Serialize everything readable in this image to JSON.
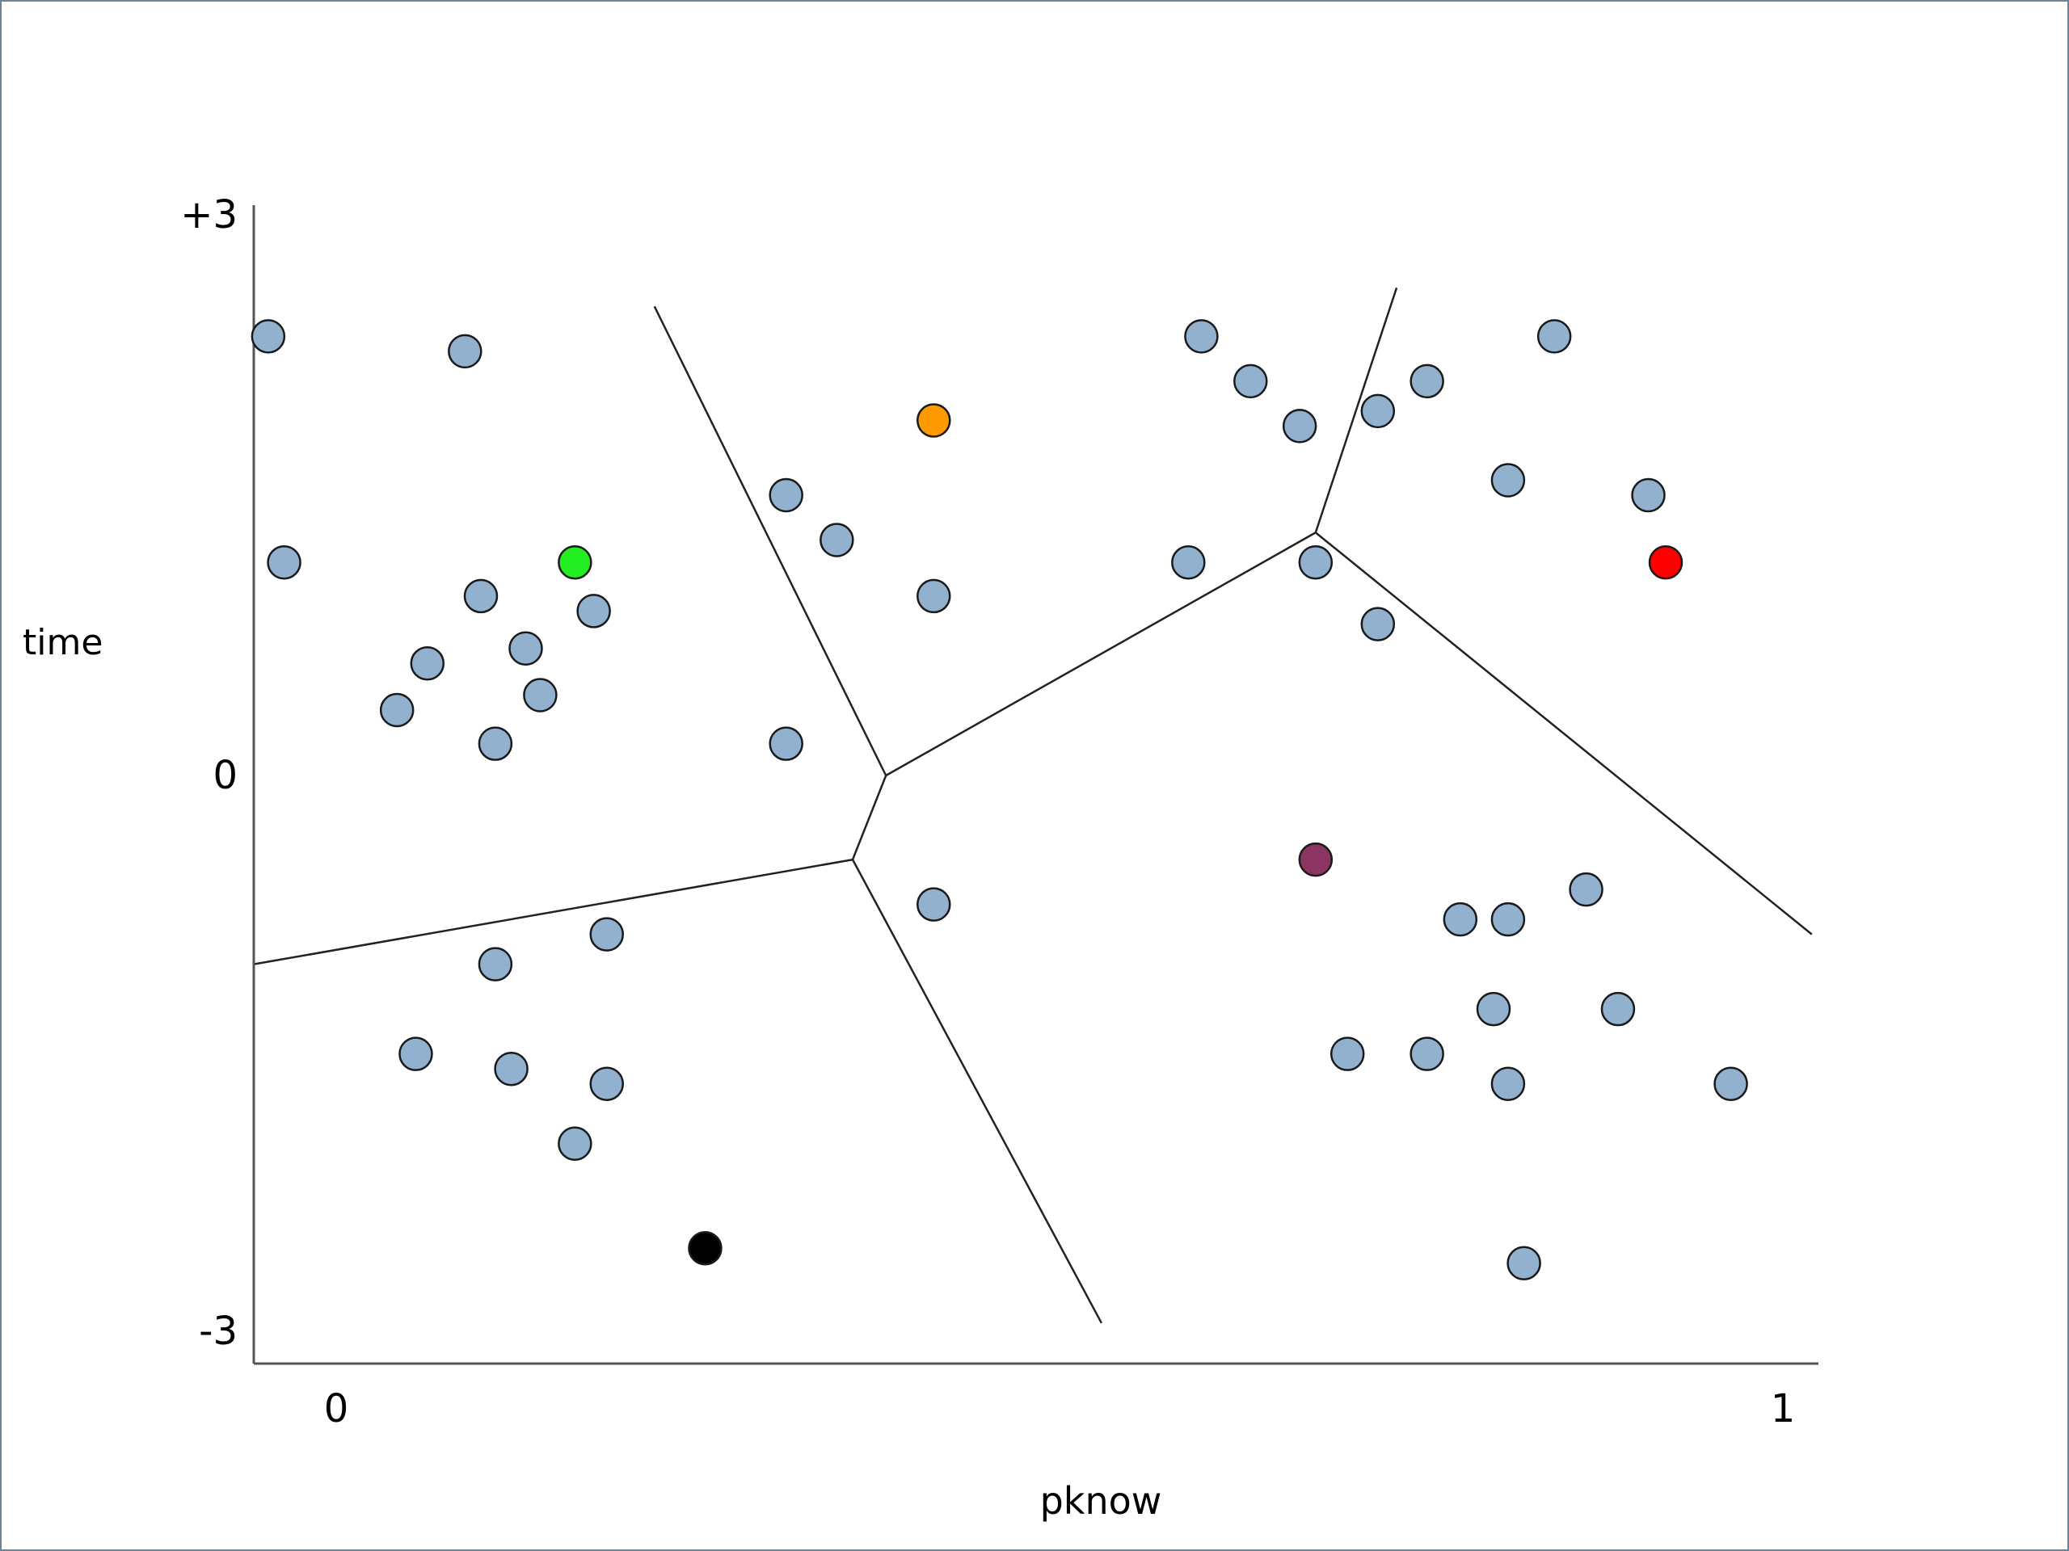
{
  "chart_data": {
    "type": "scatter",
    "title": "",
    "xlabel": "pknow",
    "ylabel": "time",
    "xlim": [
      0,
      1
    ],
    "ylim": [
      -3,
      3
    ],
    "x_tick_labels": [
      {
        "value": 0,
        "label": "0"
      },
      {
        "value": 1,
        "label": "1"
      }
    ],
    "y_tick_labels": [
      {
        "value": 3,
        "label": "+3"
      },
      {
        "value": 0,
        "label": "0"
      },
      {
        "value": -3,
        "label": "-3"
      }
    ],
    "grid": false,
    "legend": "none",
    "colors": {
      "point": "#92b1cf",
      "outline": "#1a1a1a",
      "axis": "#555555",
      "boundary": "#222222",
      "frame": "#6f8493"
    },
    "points": [
      {
        "x": -0.047,
        "y": 2.35
      },
      {
        "x": 0.089,
        "y": 2.27
      },
      {
        "x": -0.036,
        "y": 1.14
      },
      {
        "x": 0.1,
        "y": 0.96
      },
      {
        "x": 0.178,
        "y": 0.88
      },
      {
        "x": 0.131,
        "y": 0.68
      },
      {
        "x": 0.063,
        "y": 0.6
      },
      {
        "x": 0.141,
        "y": 0.43
      },
      {
        "x": 0.042,
        "y": 0.35
      },
      {
        "x": 0.11,
        "y": 0.17
      },
      {
        "x": 0.311,
        "y": 1.5
      },
      {
        "x": 0.346,
        "y": 1.26
      },
      {
        "x": 0.413,
        "y": 0.96
      },
      {
        "x": 0.311,
        "y": 0.17
      },
      {
        "x": 0.598,
        "y": 2.35
      },
      {
        "x": 0.632,
        "y": 2.11
      },
      {
        "x": 0.666,
        "y": 1.87
      },
      {
        "x": 0.72,
        "y": 1.95
      },
      {
        "x": 0.754,
        "y": 2.11
      },
      {
        "x": 0.842,
        "y": 2.35
      },
      {
        "x": 0.589,
        "y": 1.14
      },
      {
        "x": 0.677,
        "y": 1.14
      },
      {
        "x": 0.72,
        "y": 0.81
      },
      {
        "x": 0.81,
        "y": 1.58
      },
      {
        "x": 0.907,
        "y": 1.5
      },
      {
        "x": 0.413,
        "y": -0.69
      },
      {
        "x": 0.187,
        "y": -0.85
      },
      {
        "x": 0.11,
        "y": -1.01
      },
      {
        "x": 0.055,
        "y": -1.49
      },
      {
        "x": 0.121,
        "y": -1.57
      },
      {
        "x": 0.187,
        "y": -1.65
      },
      {
        "x": 0.165,
        "y": -1.97
      },
      {
        "x": 0.777,
        "y": -0.77
      },
      {
        "x": 0.81,
        "y": -0.77
      },
      {
        "x": 0.864,
        "y": -0.61
      },
      {
        "x": 0.8,
        "y": -1.25
      },
      {
        "x": 0.886,
        "y": -1.25
      },
      {
        "x": 0.699,
        "y": -1.49
      },
      {
        "x": 0.754,
        "y": -1.49
      },
      {
        "x": 0.81,
        "y": -1.65
      },
      {
        "x": 0.964,
        "y": -1.65
      },
      {
        "x": 0.821,
        "y": -2.61
      }
    ],
    "centroids": [
      {
        "x": 0.165,
        "y": 1.14,
        "color": "#22ee22"
      },
      {
        "x": 0.413,
        "y": 1.9,
        "color": "#ff9900"
      },
      {
        "x": 0.919,
        "y": 1.14,
        "color": "#ff0000"
      },
      {
        "x": 0.677,
        "y": -0.45,
        "color": "#8a3562"
      },
      {
        "x": 0.255,
        "y": -2.53,
        "color": "#000000"
      }
    ],
    "boundaries": [
      [
        [
          0.22,
          2.51
        ],
        [
          0.38,
          0.0
        ]
      ],
      [
        [
          0.38,
          0.0
        ],
        [
          0.677,
          1.3
        ]
      ],
      [
        [
          0.677,
          1.3
        ],
        [
          0.733,
          2.61
        ]
      ],
      [
        [
          0.677,
          1.3
        ],
        [
          1.02,
          -0.85
        ]
      ],
      [
        [
          0.38,
          0.0
        ],
        [
          0.357,
          -0.45
        ]
      ],
      [
        [
          0.357,
          -0.45
        ],
        [
          -0.057,
          -1.01
        ]
      ],
      [
        [
          0.357,
          -0.45
        ],
        [
          0.529,
          -2.93
        ]
      ]
    ]
  }
}
